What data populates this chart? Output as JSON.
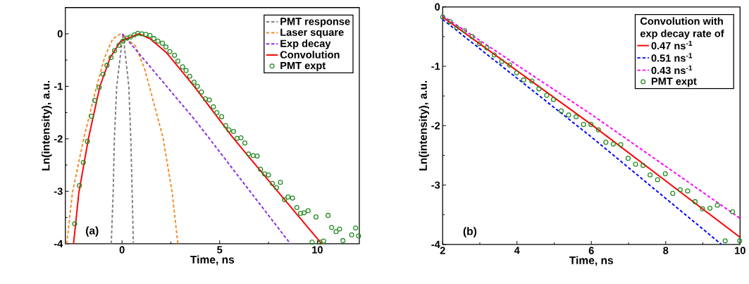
{
  "chart_data": [
    {
      "type": "line",
      "xlabel": "Time, ns",
      "ylabel": "Ln(intensity), a.u.",
      "xlim": [
        -2.9,
        12.15
      ],
      "ylim": [
        -4,
        0.5
      ],
      "xticks": [
        0,
        5,
        10
      ],
      "yticks": [
        -4,
        -3,
        -2,
        -1,
        0
      ],
      "legend": "top right",
      "annotations": [
        "(a)"
      ],
      "series": [
        {
          "name": "PMT response",
          "line_style": "dashed",
          "color": "#808080",
          "x": [
            -0.55,
            -0.45,
            -0.39,
            -0.27,
            0.05,
            0.35,
            0.45,
            0.52,
            0.58
          ],
          "values": [
            -4,
            -3,
            -2,
            -1,
            0,
            -1,
            -2,
            -3,
            -4
          ]
        },
        {
          "name": "Laser square",
          "line_style": "dashed",
          "color": "#f28c28",
          "x": [
            -2.83,
            -2.54,
            -1.95,
            -1.3,
            -0.89,
            -0.48,
            -0.07,
            0.69,
            1.16,
            1.4,
            2.1,
            2.57,
            2.86
          ],
          "values": [
            -4,
            -3.03,
            -1.98,
            -1.0,
            -0.45,
            -0.1,
            0,
            -0.23,
            -0.67,
            -1.0,
            -1.98,
            -3.03,
            -4
          ]
        },
        {
          "name": "Exp decay",
          "line_style": "dashed",
          "color": "#8a2be2",
          "x": [
            0.02,
            3.8,
            8.62
          ],
          "values": [
            0,
            -1.67,
            -4
          ]
        },
        {
          "name": "Convolution",
          "line_style": "solid",
          "color": "#ff0000",
          "x": [
            -2.48,
            -2.21,
            -1.71,
            -1.13,
            -0.6,
            -0.07,
            0.87,
            1.46,
            2.28,
            3.69,
            5.68,
            8.03,
            10.22
          ],
          "values": [
            -4,
            -3.03,
            -1.98,
            -1.0,
            -0.45,
            -0.14,
            0,
            -0.1,
            -0.36,
            -1.0,
            -1.98,
            -3.03,
            -4
          ]
        },
        {
          "name": "PMT expt",
          "type": "scatter",
          "marker": "circle",
          "color": "#228b22",
          "x": [
            -2.42,
            -2.18,
            -1.98,
            -1.77,
            -1.56,
            -1.39,
            -1.17,
            -0.97,
            -0.77,
            -0.56,
            -0.38,
            -0.16,
            0.05,
            0.25,
            0.43,
            0.63,
            0.81,
            1.01,
            1.22,
            1.43,
            1.63,
            1.84,
            2.07,
            2.25,
            2.45,
            2.69,
            2.86,
            3.1,
            3.28,
            3.47,
            3.69,
            3.86,
            4.07,
            4.27,
            4.47,
            4.68,
            4.86,
            5.1,
            5.31,
            5.47,
            5.71,
            5.89,
            6.09,
            6.29,
            6.48,
            6.72,
            6.92,
            7.09,
            7.3,
            7.5,
            7.7,
            7.91,
            8.11,
            8.32,
            8.5,
            8.73,
            8.95,
            9.14,
            9.32,
            9.53,
            9.73,
            9.93,
            10.14,
            10.32,
            10.55,
            10.73,
            10.96,
            11.14,
            11.31,
            11.76,
            11.96,
            12.11
          ],
          "values": [
            -3.62,
            -2.89,
            -2.45,
            -2.05,
            -1.57,
            -1.27,
            -1.02,
            -0.77,
            -0.6,
            -0.45,
            -0.32,
            -0.22,
            -0.14,
            -0.08,
            -0.06,
            -0.02,
            0.01,
            0.0,
            -0.01,
            -0.03,
            -0.09,
            -0.14,
            -0.18,
            -0.25,
            -0.34,
            -0.41,
            -0.52,
            -0.63,
            -0.7,
            -0.81,
            -0.92,
            -1.0,
            -1.11,
            -1.24,
            -1.26,
            -1.39,
            -1.5,
            -1.58,
            -1.75,
            -1.83,
            -1.86,
            -1.99,
            -1.98,
            -2.08,
            -2.29,
            -2.32,
            -2.33,
            -2.58,
            -2.67,
            -2.69,
            -2.85,
            -2.93,
            -2.83,
            -3.16,
            -3.11,
            -3.13,
            -3.31,
            -3.42,
            -3.41,
            -3.37,
            -3.97,
            -3.49,
            -3.97,
            -3.95,
            -3.46,
            -3.69,
            -3.77,
            -3.72,
            -3.94,
            -3.83,
            -3.7,
            -3.85
          ]
        }
      ]
    },
    {
      "type": "line",
      "xlabel": "Time, ns",
      "ylabel": "Ln(intensity), a.u.",
      "xlim": [
        2,
        10
      ],
      "ylim": [
        -4,
        0
      ],
      "xticks": [
        2,
        4,
        6,
        8,
        10
      ],
      "yticks": [
        -4,
        -3,
        -2,
        -1,
        0
      ],
      "legend": "top right",
      "legend_title": "Convolution with exp decay rate of",
      "annotations": [
        "(b)"
      ],
      "series": [
        {
          "name": "0.47 ns$^{-1}$",
          "line_style": "solid",
          "color": "#ff0000",
          "x": [
            2,
            6,
            10
          ],
          "values": [
            -0.17,
            -1.98,
            -3.88
          ]
        },
        {
          "name": "0.51 ns$^{-1}$",
          "line_style": "dashed",
          "color": "#0000ff",
          "x": [
            2,
            6,
            9.5
          ],
          "values": [
            -0.21,
            -2.19,
            -4
          ]
        },
        {
          "name": "0.43 ns$^{-1}$",
          "line_style": "dashed",
          "color": "#ff00ff",
          "x": [
            2,
            6,
            10
          ],
          "values": [
            -0.15,
            -1.81,
            -3.56
          ]
        },
        {
          "name": "PMT expt",
          "type": "scatter",
          "marker": "circle",
          "color": "#228b22",
          "x": [
            2.0,
            2.2,
            2.38,
            2.59,
            2.79,
            2.99,
            3.19,
            3.39,
            3.59,
            3.8,
            3.99,
            4.18,
            4.4,
            4.59,
            4.8,
            4.98,
            5.19,
            5.39,
            5.59,
            5.79,
            5.99,
            6.19,
            6.39,
            6.59,
            6.79,
            6.99,
            7.19,
            7.39,
            7.58,
            7.78,
            7.99,
            8.19,
            8.39,
            8.59,
            8.79,
            8.99,
            9.19,
            9.39,
            9.6,
            9.8,
            9.99
          ],
          "values": [
            -0.17,
            -0.25,
            -0.35,
            -0.4,
            -0.5,
            -0.62,
            -0.69,
            -0.81,
            -0.92,
            -0.98,
            -1.11,
            -1.23,
            -1.25,
            -1.38,
            -1.49,
            -1.56,
            -1.75,
            -1.82,
            -1.85,
            -1.98,
            -1.98,
            -2.07,
            -2.28,
            -2.31,
            -2.32,
            -2.55,
            -2.65,
            -2.67,
            -2.83,
            -2.91,
            -2.81,
            -3.14,
            -3.08,
            -3.1,
            -3.28,
            -3.4,
            -3.39,
            -3.34,
            -3.94,
            -3.45,
            -3.94
          ]
        }
      ]
    }
  ]
}
